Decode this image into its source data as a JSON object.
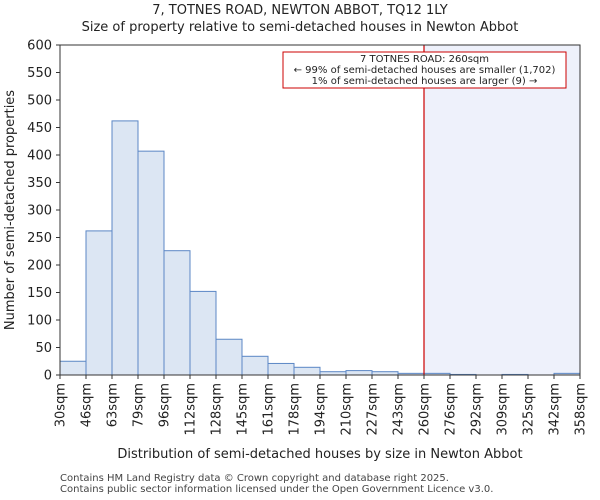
{
  "chart_data": {
    "type": "bar",
    "title": "7, TOTNES ROAD, NEWTON ABBOT, TQ12 1LY",
    "subtitle": "Size of property relative to semi-detached houses in Newton Abbot",
    "xlabel": "Distribution of semi-detached houses by size in Newton Abbot",
    "ylabel": "Number of semi-detached properties",
    "ylim": [
      0,
      600
    ],
    "yticks": [
      0,
      50,
      100,
      150,
      200,
      250,
      300,
      350,
      400,
      450,
      500,
      550,
      600
    ],
    "bin_edges": [
      30,
      46,
      63,
      79,
      96,
      112,
      128,
      145,
      161,
      178,
      194,
      210,
      227,
      243,
      260,
      276,
      292,
      309,
      325,
      342,
      358
    ],
    "tick_labels": [
      "30sqm",
      "46sqm",
      "63sqm",
      "79sqm",
      "96sqm",
      "112sqm",
      "128sqm",
      "145sqm",
      "161sqm",
      "178sqm",
      "194sqm",
      "210sqm",
      "227sqm",
      "243sqm",
      "260sqm",
      "276sqm",
      "292sqm",
      "309sqm",
      "325sqm",
      "342sqm",
      "358sqm"
    ],
    "values": [
      25,
      262,
      462,
      407,
      226,
      152,
      65,
      34,
      21,
      14,
      6,
      8,
      6,
      3,
      3,
      1,
      0,
      1,
      0,
      3
    ],
    "marker_value": 260,
    "annotation": {
      "line1": "7 TOTNES ROAD: 260sqm",
      "line2": "← 99% of semi-detached houses are smaller (1,702)",
      "line3": "1% of semi-detached houses are larger (9) →"
    },
    "colors": {
      "bar_fill": "#dce6f3",
      "bar_edge": "#5b87c5",
      "marker": "#cc0000",
      "highlight": "#eef1fb"
    }
  },
  "footer": {
    "line1": "Contains HM Land Registry data © Crown copyright and database right 2025.",
    "line2": "Contains public sector information licensed under the Open Government Licence v3.0."
  }
}
